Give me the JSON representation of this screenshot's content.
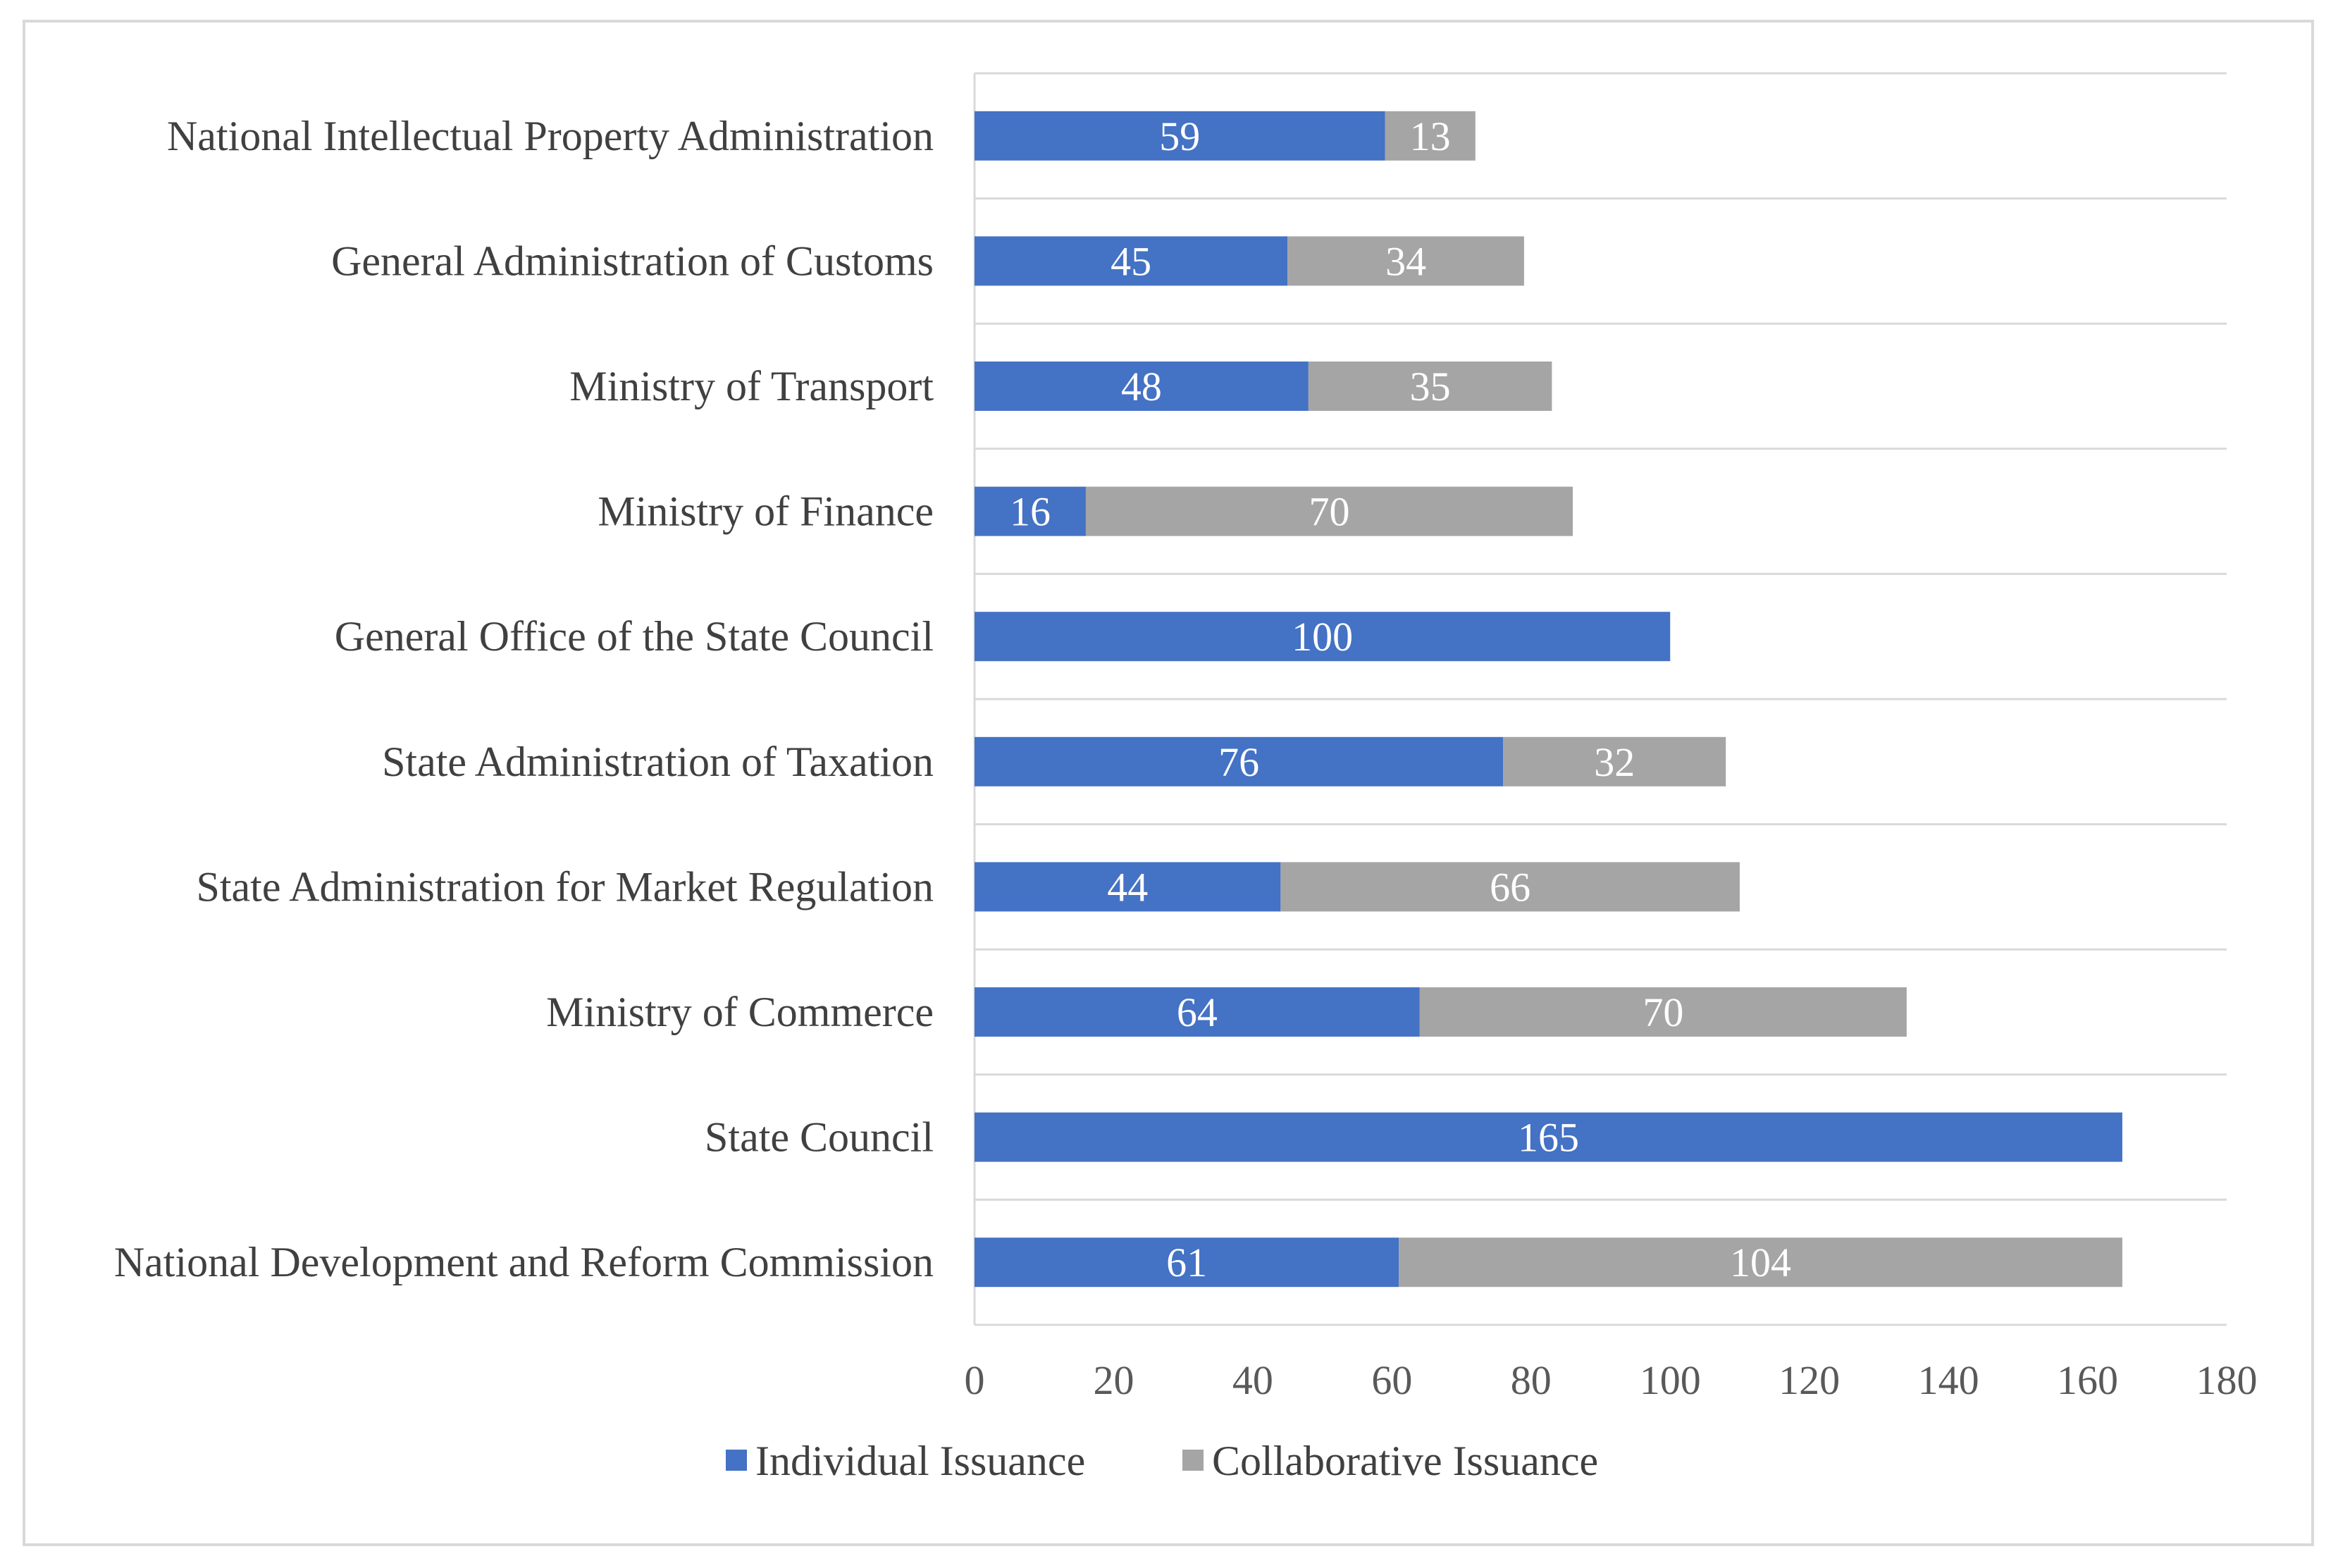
{
  "chart_data": {
    "type": "bar",
    "orientation": "horizontal",
    "stacked": true,
    "categories": [
      "National Intellectual Property Administration",
      "General Administration of Customs",
      "Ministry of Transport",
      "Ministry of Finance",
      "General Office of the State Council",
      "State Administration of Taxation",
      "State Administration for Market Regulation",
      "Ministry of Commerce",
      "State Council",
      "National Development and Reform Commission"
    ],
    "series": [
      {
        "name": "Individual Issuance",
        "color": "#4472c4",
        "values": [
          59,
          45,
          48,
          16,
          100,
          76,
          44,
          64,
          165,
          61
        ]
      },
      {
        "name": "Collaborative Issuance",
        "color": "#a5a5a5",
        "values": [
          13,
          34,
          35,
          70,
          0,
          32,
          66,
          70,
          0,
          104
        ]
      }
    ],
    "xlim": [
      0,
      180
    ],
    "xticks": [
      0,
      20,
      40,
      60,
      80,
      100,
      120,
      140,
      160,
      180
    ],
    "grid": "horizontal separators between categories",
    "legend": "bottom-center",
    "title": "",
    "xlabel": "",
    "ylabel": ""
  }
}
